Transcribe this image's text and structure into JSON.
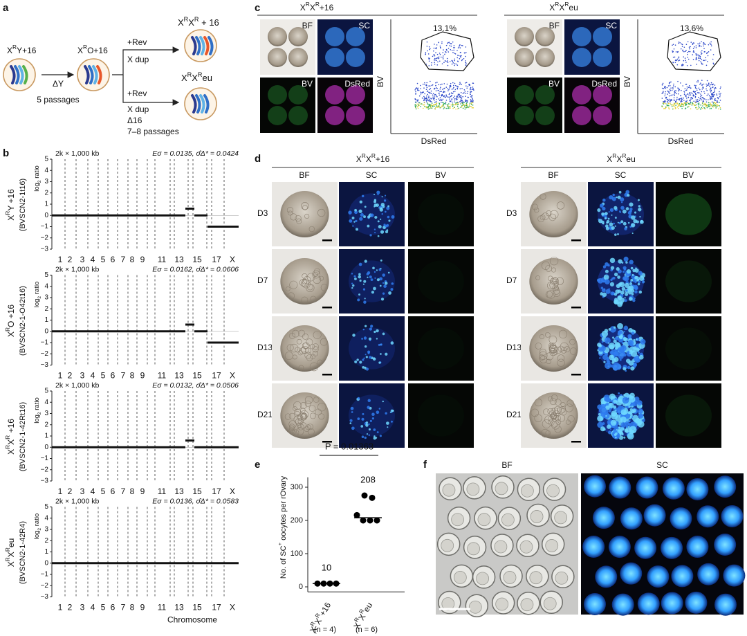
{
  "panel_labels": [
    "a",
    "b",
    "c",
    "d",
    "e",
    "f"
  ],
  "a": {
    "parent": [
      "X",
      "R",
      "Y+16"
    ],
    "intermediate": [
      "X",
      "R",
      "O+16"
    ],
    "step1": [
      "ΔY",
      "5 passages"
    ],
    "branch1": {
      "steps": [
        "+Rev",
        "X dup"
      ],
      "result": [
        "X",
        "R",
        "X",
        "R",
        " + 16"
      ]
    },
    "branch2": {
      "steps": [
        "+Rev",
        "X dup",
        "Δ16",
        "7–8 passages"
      ],
      "result": [
        "X",
        "R",
        "X",
        "R",
        "eu"
      ]
    }
  },
  "b": {
    "ylabel": [
      "log",
      "2",
      " ratio"
    ],
    "xlabel": "Chromosome",
    "chromosomes": [
      "1",
      "2",
      "3",
      "4",
      "5",
      "6",
      "7",
      "8",
      "9",
      "11",
      "13",
      "15",
      "17",
      "X"
    ],
    "ylim": [
      -3,
      5
    ],
    "yticks": [
      {
        "value": -3,
        "label": "−3"
      },
      {
        "value": -2,
        "label": "−2"
      },
      {
        "value": -1,
        "label": "−1"
      },
      0,
      1,
      2,
      3,
      4,
      5
    ],
    "plots": [
      {
        "resolution": "2k × 1,000 kb",
        "stats": "Eσ = 0.0135, σ̂Δ* = 0.0424",
        "label": [
          "X",
          "R",
          "Y +16"
        ],
        "line_id": "(BVSCN2-1t16)",
        "baseline": 0,
        "chr16": 0.6,
        "chrX": -1
      },
      {
        "resolution": "2k × 1,000 kb",
        "stats": "Eσ = 0.0162, σ̂Δ* = 0.0606",
        "label": [
          "X",
          "R",
          "O +16"
        ],
        "line_id": "(BVSCN2-1-O42t16)",
        "baseline": 0,
        "chr16": 0.6,
        "chrX": -1
      },
      {
        "resolution": "2k × 1,000 kb",
        "stats": "Eσ = 0.0132, σ̂Δ* = 0.0506",
        "label": [
          "X",
          "R",
          "X",
          "R",
          " +16"
        ],
        "line_id": "(BVSCN2-1-42Rt16)",
        "baseline": 0,
        "chr16": 0.6,
        "chrX": 0
      },
      {
        "resolution": "2k × 1,000 kb",
        "stats": "Eσ = 0.0136, σ̂Δ* = 0.0583",
        "label": [
          "X",
          "R",
          "X",
          "R",
          "eu"
        ],
        "line_id": "(BVSCN2-1-42R4)",
        "baseline": 0,
        "chr16": 0,
        "chrX": 0
      }
    ]
  },
  "c": {
    "groups": [
      {
        "title": [
          "X",
          "R",
          "X",
          "R",
          "+16"
        ],
        "tiles": [
          "BF",
          "SC",
          "BV",
          "DsRed"
        ],
        "gate": "13.1%",
        "xlabel": "DsRed",
        "ylabel": "BV"
      },
      {
        "title": [
          "X",
          "R",
          "X",
          "R",
          "eu"
        ],
        "tiles": [
          "BF",
          "SC",
          "BV",
          "DsRed"
        ],
        "gate": "13.6%",
        "xlabel": "DsRed",
        "ylabel": "BV"
      }
    ]
  },
  "d": {
    "groups": [
      {
        "title": [
          "X",
          "R",
          "X",
          "R",
          "+16"
        ],
        "columns": [
          "BF",
          "SC",
          "BV"
        ],
        "rows": [
          "D3",
          "D7",
          "D13",
          "D21"
        ]
      },
      {
        "title": [
          "X",
          "R",
          "X",
          "R",
          "eu"
        ],
        "columns": [
          "BF",
          "SC",
          "BV"
        ],
        "rows": [
          "D3",
          "D7",
          "D13",
          "D21"
        ]
      }
    ]
  },
  "e": {
    "chart_data": {
      "type": "dot",
      "ylabel": [
        "No. of SC",
        "+",
        " oocytes per rOvary"
      ],
      "ylim": [
        -15,
        330
      ],
      "yticks": [
        0,
        100,
        200,
        300
      ],
      "p_label": "P = 0.01363",
      "groups": [
        {
          "label": [
            "X",
            "R",
            "X",
            "R",
            "+16"
          ],
          "n": "(n = 4)",
          "values": [
            10,
            10,
            10,
            10
          ],
          "median": 10
        },
        {
          "label": [
            "X",
            "R",
            "X",
            "R",
            "eu"
          ],
          "n": "(n = 6)",
          "values": [
            275,
            268,
            216,
            200,
            200,
            200
          ],
          "median": 208
        }
      ]
    }
  },
  "f": {
    "tiles": [
      "BF",
      "SC"
    ]
  }
}
